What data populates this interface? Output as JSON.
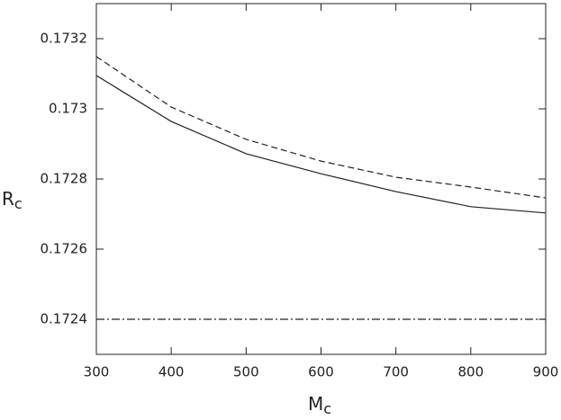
{
  "chart_data": {
    "type": "line",
    "xlabel": "M",
    "xlabel_sub": "c",
    "ylabel": "R",
    "ylabel_sub": "c",
    "x": [
      300,
      400,
      500,
      600,
      700,
      800,
      900
    ],
    "series": [
      {
        "color": "#222222",
        "dash": "solid",
        "values": [
          0.173095,
          0.172964,
          0.172872,
          0.172815,
          0.172764,
          0.172721,
          0.172703
        ]
      },
      {
        "color": "#222222",
        "dash": "dashed",
        "values": [
          0.173149,
          0.173005,
          0.172913,
          0.172851,
          0.172805,
          0.172777,
          0.172746
        ]
      },
      {
        "color": "#222222",
        "dash": "dashdot",
        "values": [
          0.1724,
          0.1724,
          0.1724,
          0.1724,
          0.1724,
          0.1724,
          0.1724
        ]
      }
    ],
    "xlim": [
      300,
      900
    ],
    "xticks": [
      300,
      400,
      500,
      600,
      700,
      800,
      900
    ],
    "ylim": [
      0.1723,
      0.1733
    ],
    "yticks": [
      0.1724,
      0.1726,
      0.1728,
      0.173,
      0.1732
    ],
    "grid": false
  }
}
